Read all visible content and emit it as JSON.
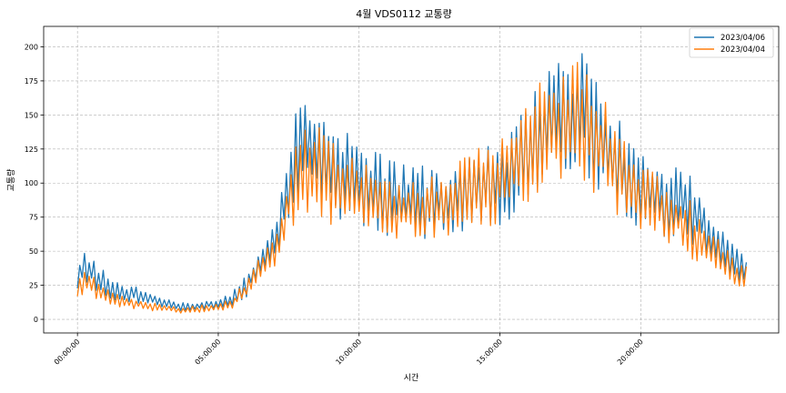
{
  "chart_data": {
    "type": "line",
    "title": "4월 VDS0112 교통량",
    "xlabel": "시간",
    "ylabel": "교통량",
    "xlim": [
      -1.2,
      24.9
    ],
    "ylim": [
      -10,
      215
    ],
    "x_ticks": [
      0,
      5,
      10,
      15,
      20
    ],
    "x_tick_labels": [
      "00:00:00",
      "05:00:00",
      "10:00:00",
      "15:00:00",
      "20:00:00"
    ],
    "y_ticks": [
      0,
      25,
      50,
      75,
      100,
      125,
      150,
      175,
      200
    ],
    "grid": true,
    "legend_position": "top-right",
    "resolution_minutes": 5,
    "series": [
      {
        "name": "2023/04/06",
        "color": "#1f77b4",
        "anchors": [
          [
            0,
            33
          ],
          [
            0.25,
            38
          ],
          [
            0.5,
            35
          ],
          [
            1,
            25
          ],
          [
            1.5,
            20
          ],
          [
            2,
            18
          ],
          [
            2.5,
            16
          ],
          [
            3,
            12
          ],
          [
            3.5,
            10
          ],
          [
            4,
            9
          ],
          [
            4.5,
            11
          ],
          [
            5,
            12
          ],
          [
            5.5,
            15
          ],
          [
            6,
            25
          ],
          [
            6.5,
            42
          ],
          [
            7,
            55
          ],
          [
            7.5,
            95
          ],
          [
            8,
            140
          ],
          [
            8.5,
            125
          ],
          [
            9,
            112
          ],
          [
            10,
            100
          ],
          [
            11,
            90
          ],
          [
            12,
            85
          ],
          [
            13,
            88
          ],
          [
            14,
            93
          ],
          [
            15,
            100
          ],
          [
            15.5,
            108
          ],
          [
            16,
            125
          ],
          [
            16.5,
            142
          ],
          [
            17,
            145
          ],
          [
            17.5,
            147
          ],
          [
            18,
            148
          ],
          [
            18.5,
            135
          ],
          [
            19,
            120
          ],
          [
            19.5,
            105
          ],
          [
            20,
            95
          ],
          [
            20.5,
            90
          ],
          [
            21,
            88
          ],
          [
            21.5,
            83
          ],
          [
            22,
            78
          ],
          [
            22.5,
            60
          ],
          [
            23,
            50
          ],
          [
            23.5,
            40
          ],
          [
            23.75,
            35
          ]
        ]
      },
      {
        "name": "2023/04/04",
        "color": "#ff7f0e",
        "anchors": [
          [
            0,
            22
          ],
          [
            0.25,
            27
          ],
          [
            0.5,
            25
          ],
          [
            1,
            18
          ],
          [
            1.5,
            13
          ],
          [
            2,
            12
          ],
          [
            2.5,
            10
          ],
          [
            3,
            8
          ],
          [
            3.5,
            7
          ],
          [
            4,
            7
          ],
          [
            4.5,
            8
          ],
          [
            5,
            9
          ],
          [
            5.5,
            12
          ],
          [
            6,
            22
          ],
          [
            6.5,
            38
          ],
          [
            7,
            50
          ],
          [
            7.5,
            85
          ],
          [
            8,
            110
          ],
          [
            8.5,
            108
          ],
          [
            9,
            100
          ],
          [
            10,
            90
          ],
          [
            11,
            82
          ],
          [
            12,
            80
          ],
          [
            13,
            85
          ],
          [
            14,
            95
          ],
          [
            15,
            102
          ],
          [
            15.5,
            112
          ],
          [
            16,
            122
          ],
          [
            16.5,
            135
          ],
          [
            17,
            140
          ],
          [
            17.5,
            148
          ],
          [
            18,
            150
          ],
          [
            18.5,
            130
          ],
          [
            19,
            115
          ],
          [
            19.5,
            100
          ],
          [
            20,
            88
          ],
          [
            20.5,
            82
          ],
          [
            21,
            80
          ],
          [
            21.5,
            72
          ],
          [
            22,
            60
          ],
          [
            22.5,
            48
          ],
          [
            23,
            42
          ],
          [
            23.5,
            30
          ],
          [
            23.75,
            30
          ]
        ]
      }
    ]
  }
}
